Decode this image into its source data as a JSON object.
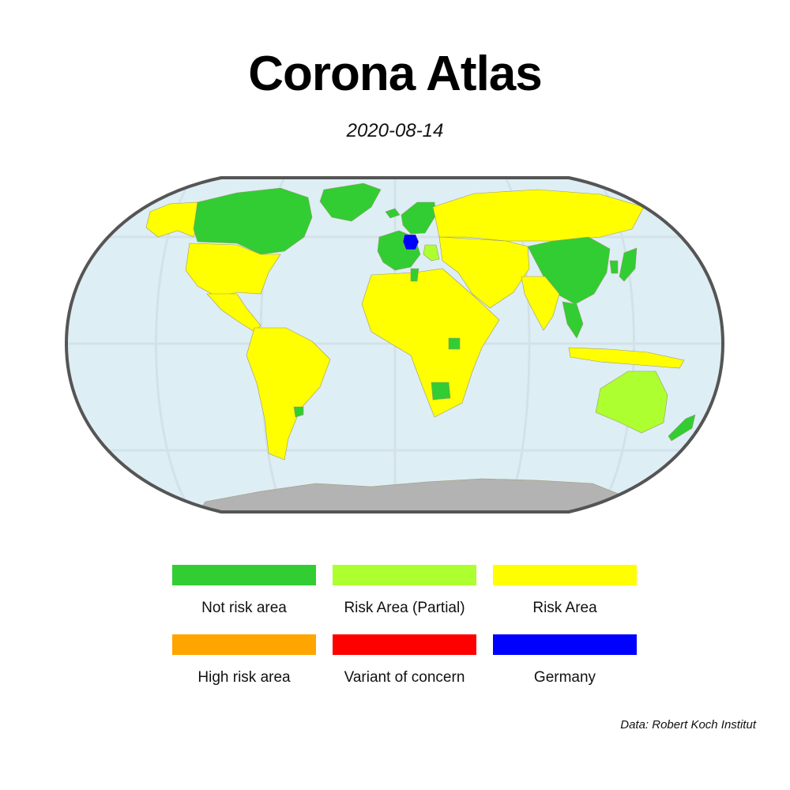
{
  "title": "Corona Atlas",
  "date": "2020-08-14",
  "credit": "Data: Robert Koch Institut",
  "map": {
    "projection": "Robinson",
    "ocean_color": "#deeef5",
    "border_color": "#555555",
    "antarctica_color": "#b3b3b3",
    "graticule_color": "#c9d9df"
  },
  "legend": {
    "items": [
      {
        "label": "Not risk area",
        "color": "#32cd32"
      },
      {
        "label": "Risk Area (Partial)",
        "color": "#adff2f"
      },
      {
        "label": "Risk Area",
        "color": "#ffff00"
      },
      {
        "label": "High risk area",
        "color": "#ffa500"
      },
      {
        "label": "Variant of concern",
        "color": "#ff0000"
      },
      {
        "label": "Germany",
        "color": "#0000ff"
      }
    ]
  },
  "regions": [
    {
      "name": "Canada",
      "status": "Not risk area",
      "color": "#32cd32"
    },
    {
      "name": "Greenland",
      "status": "Not risk area",
      "color": "#32cd32"
    },
    {
      "name": "Alaska",
      "status": "Risk Area",
      "color": "#ffff00"
    },
    {
      "name": "United States",
      "status": "Risk Area",
      "color": "#ffff00"
    },
    {
      "name": "Central America",
      "status": "Risk Area",
      "color": "#ffff00"
    },
    {
      "name": "South America",
      "status": "Risk Area",
      "color": "#ffff00"
    },
    {
      "name": "Uruguay",
      "status": "Not risk area",
      "color": "#32cd32"
    },
    {
      "name": "Iceland",
      "status": "Not risk area",
      "color": "#32cd32"
    },
    {
      "name": "Scandinavia",
      "status": "Not risk area",
      "color": "#32cd32"
    },
    {
      "name": "Western Europe",
      "status": "Not risk area",
      "color": "#32cd32"
    },
    {
      "name": "Germany",
      "status": "Germany",
      "color": "#0000ff"
    },
    {
      "name": "Balkans",
      "status": "Risk Area (Partial)",
      "color": "#adff2f"
    },
    {
      "name": "Russia",
      "status": "Risk Area",
      "color": "#ffff00"
    },
    {
      "name": "Africa",
      "status": "Risk Area",
      "color": "#ffff00"
    },
    {
      "name": "Rwanda",
      "status": "Not risk area",
      "color": "#32cd32"
    },
    {
      "name": "Botswana",
      "status": "Not risk area",
      "color": "#32cd32"
    },
    {
      "name": "Tunisia",
      "status": "Not risk area",
      "color": "#32cd32"
    },
    {
      "name": "Middle East",
      "status": "Risk Area",
      "color": "#ffff00"
    },
    {
      "name": "India",
      "status": "Risk Area",
      "color": "#ffff00"
    },
    {
      "name": "China",
      "status": "Not risk area",
      "color": "#32cd32"
    },
    {
      "name": "South Korea",
      "status": "Not risk area",
      "color": "#32cd32"
    },
    {
      "name": "Japan",
      "status": "Not risk area",
      "color": "#32cd32"
    },
    {
      "name": "Southeast Asia",
      "status": "Not risk area",
      "color": "#32cd32"
    },
    {
      "name": "Indonesia",
      "status": "Risk Area",
      "color": "#ffff00"
    },
    {
      "name": "Australia",
      "status": "Risk Area (Partial)",
      "color": "#adff2f"
    },
    {
      "name": "New Zealand",
      "status": "Not risk area",
      "color": "#32cd32"
    },
    {
      "name": "Antarctica",
      "status": "none",
      "color": "#b3b3b3"
    }
  ]
}
